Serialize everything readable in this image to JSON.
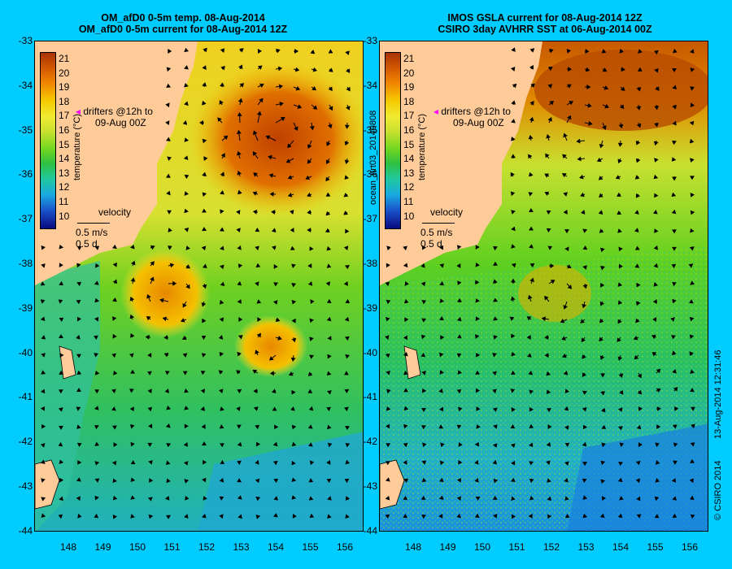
{
  "left_panel": {
    "title_line1": "OM_afD0 0-5m temp. 08-Aug-2014",
    "title_line2": "OM_afD0 0-5m current for 08-Aug-2014 12Z"
  },
  "right_panel": {
    "title_line1": "IMOS GSLA current for 08-Aug-2014 12Z",
    "title_line2": "CSIRO 3day AVHRR SST at 06-Aug-2014 00Z"
  },
  "y_ticks": [
    "-33",
    "-34",
    "-35",
    "-36",
    "-37",
    "-38",
    "-39",
    "-40",
    "-41",
    "-42",
    "-43",
    "-44"
  ],
  "x_ticks": [
    "148",
    "149",
    "150",
    "151",
    "152",
    "153",
    "154",
    "155",
    "156"
  ],
  "colorbar": {
    "label": "temperature (°C)",
    "ticks": [
      "21",
      "20",
      "19",
      "18",
      "17",
      "16",
      "15",
      "14",
      "13",
      "12",
      "11",
      "10"
    ],
    "range": [
      10,
      21
    ]
  },
  "legend": {
    "drifters_line1": "drifters @12h to",
    "drifters_line2": "09-Aug 00Z",
    "velocity_title": "velocity",
    "velocity_value": "0.5 m/s",
    "velocity_duration": "0.5 d"
  },
  "run_id": "ocean_nrt03_20140808",
  "timestamp": "13-Aug-2014 12:31:46",
  "copyright": "© CSIRO 2014",
  "colors": {
    "background": "#00ccff",
    "land": "#ffcc99",
    "marker": "#ff00ff"
  }
}
